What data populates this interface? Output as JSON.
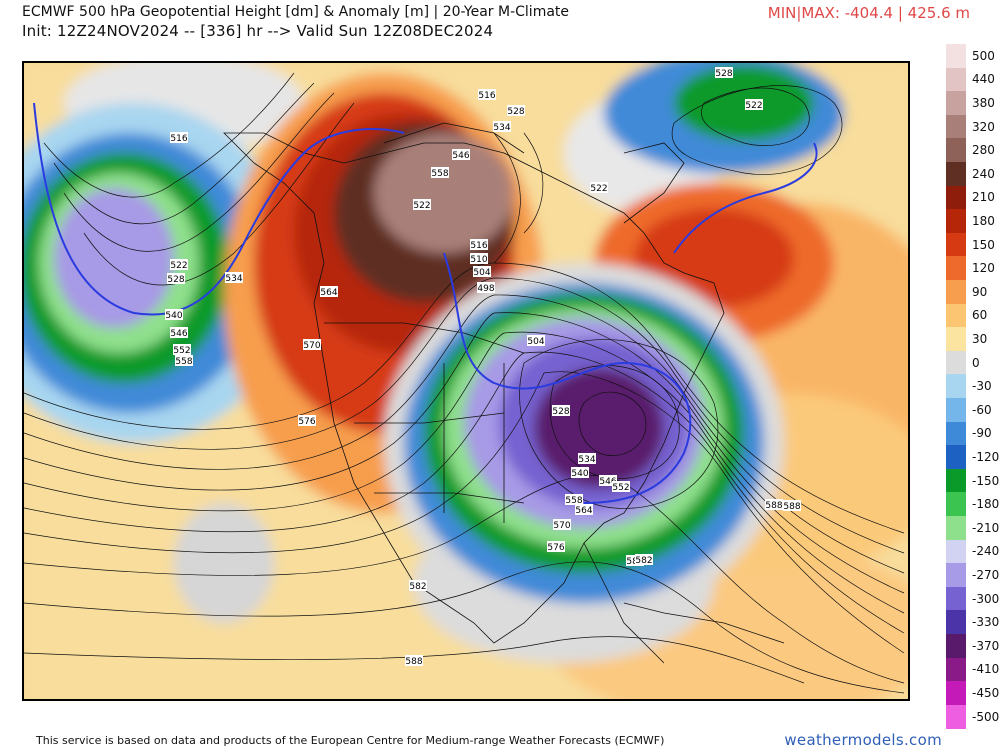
{
  "header": {
    "title_line1": "ECMWF 500 hPa Geopotential Height [dm] & Anomaly [m] | 20-Year M-Climate",
    "title_line2": "Init: 12Z24NOV2024 -- [336] hr --> Valid Sun 12Z08DEC2024",
    "minmax": "MIN|MAX: -404.4 | 425.6 m"
  },
  "legend": {
    "entries": [
      {
        "label": "500",
        "color": "#f3e1e1"
      },
      {
        "label": "440",
        "color": "#e2c4c4"
      },
      {
        "label": "380",
        "color": "#c8a29e"
      },
      {
        "label": "320",
        "color": "#a98079"
      },
      {
        "label": "280",
        "color": "#8e6258"
      },
      {
        "label": "240",
        "color": "#5e2f22"
      },
      {
        "label": "210",
        "color": "#8e1d0c"
      },
      {
        "label": "180",
        "color": "#b52508"
      },
      {
        "label": "150",
        "color": "#d63a12"
      },
      {
        "label": "120",
        "color": "#ee6a2c"
      },
      {
        "label": "90",
        "color": "#f79e4e"
      },
      {
        "label": "60",
        "color": "#fbc572"
      },
      {
        "label": "30",
        "color": "#fbe3a0"
      },
      {
        "label": "0",
        "color": "#dcdcdc"
      },
      {
        "label": "-30",
        "color": "#a8d6f0"
      },
      {
        "label": "-60",
        "color": "#74b6ea"
      },
      {
        "label": "-90",
        "color": "#3f8ad8"
      },
      {
        "label": "-120",
        "color": "#1d62c2"
      },
      {
        "label": "-150",
        "color": "#0a9a2a"
      },
      {
        "label": "-180",
        "color": "#3cc450"
      },
      {
        "label": "-210",
        "color": "#8fe08c"
      },
      {
        "label": "-240",
        "color": "#d2d2f2"
      },
      {
        "label": "-270",
        "color": "#a79ae6"
      },
      {
        "label": "-300",
        "color": "#7662d0"
      },
      {
        "label": "-330",
        "color": "#4a34a8"
      },
      {
        "label": "-370",
        "color": "#5a1a6c"
      },
      {
        "label": "-410",
        "color": "#8a1a88"
      },
      {
        "label": "-450",
        "color": "#c41ab8"
      },
      {
        "label": "-500",
        "color": "#ee5ee0"
      }
    ]
  },
  "map": {
    "contour_labels": [
      {
        "text": "516"
      },
      {
        "text": "522"
      },
      {
        "text": "528"
      },
      {
        "text": "534"
      },
      {
        "text": "540"
      },
      {
        "text": "546"
      },
      {
        "text": "552"
      },
      {
        "text": "558"
      },
      {
        "text": "564"
      },
      {
        "text": "570"
      },
      {
        "text": "576"
      },
      {
        "text": "582"
      },
      {
        "text": "588"
      },
      {
        "text": "516"
      },
      {
        "text": "528"
      },
      {
        "text": "534"
      },
      {
        "text": "546"
      },
      {
        "text": "558"
      },
      {
        "text": "522"
      },
      {
        "text": "516"
      },
      {
        "text": "510"
      },
      {
        "text": "504"
      },
      {
        "text": "498"
      },
      {
        "text": "504"
      },
      {
        "text": "528"
      },
      {
        "text": "534"
      },
      {
        "text": "540"
      },
      {
        "text": "546"
      },
      {
        "text": "552"
      },
      {
        "text": "558"
      },
      {
        "text": "564"
      },
      {
        "text": "570"
      },
      {
        "text": "576"
      },
      {
        "text": "582"
      },
      {
        "text": "522"
      },
      {
        "text": "528"
      },
      {
        "text": "522"
      },
      {
        "text": "588"
      },
      {
        "text": "582"
      },
      {
        "text": "588"
      }
    ]
  },
  "footer": {
    "credit": "This service is based on data and products of the European Centre for Medium-range Weather Forecasts (ECMWF)",
    "brand": "weathermodels.com"
  }
}
